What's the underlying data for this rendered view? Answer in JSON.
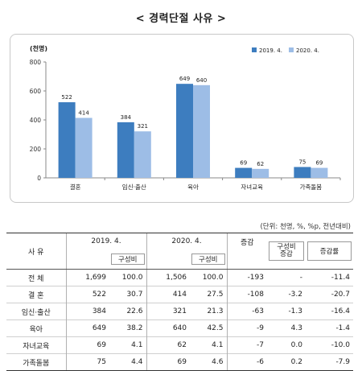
{
  "title": "< 경력단절 사유 >",
  "chart_data": {
    "type": "bar",
    "unit_label": "(천명)",
    "categories": [
      "결혼",
      "임신·출산",
      "육아",
      "자녀교육",
      "가족돌봄"
    ],
    "series": [
      {
        "name": "2019. 4.",
        "values": [
          522,
          384,
          649,
          69,
          75
        ],
        "color": "#3d7dbf"
      },
      {
        "name": "2020. 4.",
        "values": [
          414,
          321,
          640,
          62,
          69
        ],
        "color": "#9dbde6"
      }
    ],
    "ylim": [
      0,
      800
    ],
    "yticks": [
      "0",
      "200",
      "400",
      "600",
      "800"
    ],
    "legend": "top-right",
    "grid": false
  },
  "table": {
    "unit_note": "(단위: 천명, %, %p, 전년대비)",
    "headers": {
      "reason": "사    유",
      "y2019": "2019. 4.",
      "y2020": "2020. 4.",
      "share": "구성비",
      "change": "증감",
      "share_change": "구성비\n증감",
      "rate": "증감률"
    },
    "rows": [
      {
        "label": "전    체",
        "v2019": "1,699",
        "s2019": "100.0",
        "v2020": "1,506",
        "s2020": "100.0",
        "diff": "-193",
        "sdiff": "-",
        "rate": "-11.4"
      },
      {
        "label": "결 혼",
        "v2019": "522",
        "s2019": "30.7",
        "v2020": "414",
        "s2020": "27.5",
        "diff": "-108",
        "sdiff": "-3.2",
        "rate": "-20.7"
      },
      {
        "label": "임신·출산",
        "v2019": "384",
        "s2019": "22.6",
        "v2020": "321",
        "s2020": "21.3",
        "diff": "-63",
        "sdiff": "-1.3",
        "rate": "-16.4"
      },
      {
        "label": "육아",
        "v2019": "649",
        "s2019": "38.2",
        "v2020": "640",
        "s2020": "42.5",
        "diff": "-9",
        "sdiff": "4.3",
        "rate": "-1.4"
      },
      {
        "label": "자녀교육",
        "v2019": "69",
        "s2019": "4.1",
        "v2020": "62",
        "s2020": "4.1",
        "diff": "-7",
        "sdiff": "0.0",
        "rate": "-10.0"
      },
      {
        "label": "가족돌봄",
        "v2019": "75",
        "s2019": "4.4",
        "v2020": "69",
        "s2020": "4.6",
        "diff": "-6",
        "sdiff": "0.2",
        "rate": "-7.9"
      }
    ]
  }
}
